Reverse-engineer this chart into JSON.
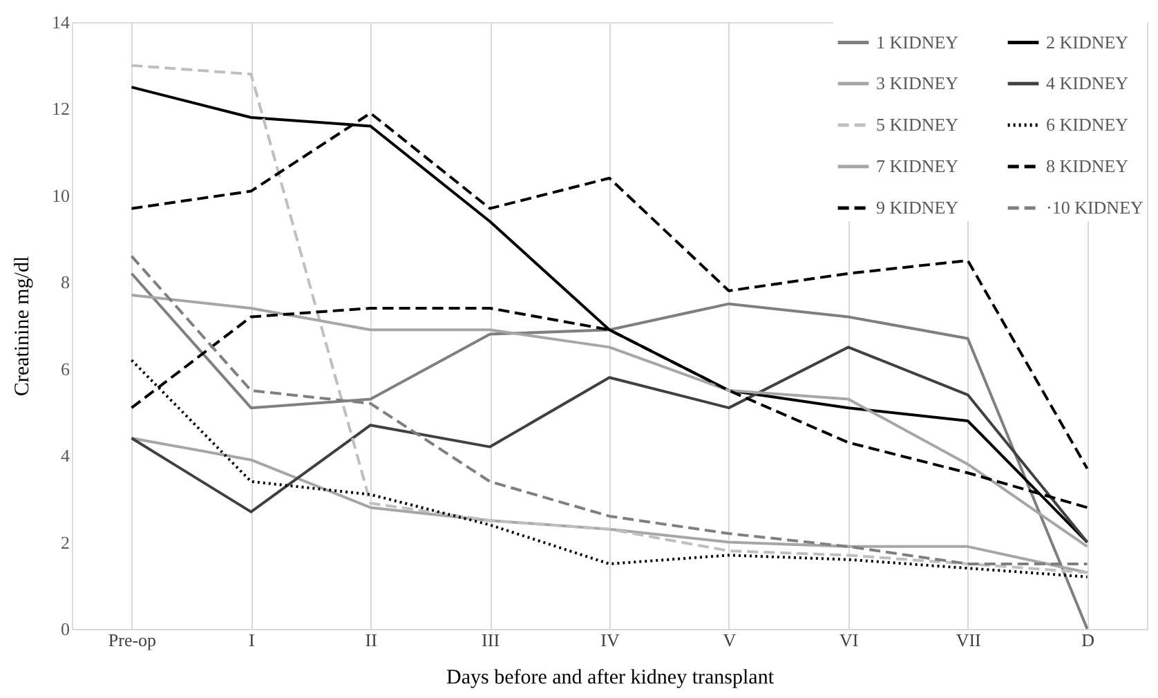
{
  "chart_data": {
    "type": "line",
    "xlabel": "Days before and after kidney transplant",
    "ylabel": "Creatinine mg/dl",
    "categories": [
      "Pre-op",
      "I",
      "II",
      "III",
      "IV",
      "V",
      "VI",
      "VII",
      "D"
    ],
    "ylim": [
      0,
      14
    ],
    "yticks": [
      0,
      2,
      4,
      6,
      8,
      10,
      12,
      14
    ],
    "grid": "x",
    "legend": "top right",
    "series": [
      {
        "name": "1 KIDNEY",
        "color": "#7f7f7f",
        "line_style": "solid",
        "values": [
          8.2,
          5.1,
          5.3,
          6.8,
          6.9,
          7.5,
          7.2,
          6.7,
          0
        ]
      },
      {
        "name": "2 KIDNEY",
        "color": "#000000",
        "line_style": "solid",
        "values": [
          12.5,
          11.8,
          11.6,
          9.4,
          6.9,
          5.5,
          5.1,
          4.8,
          2.0
        ]
      },
      {
        "name": "3 KIDNEY",
        "color": "#a6a6a6",
        "line_style": "solid",
        "values": [
          4.4,
          3.9,
          2.8,
          2.5,
          2.3,
          2.0,
          1.9,
          1.9,
          1.3
        ]
      },
      {
        "name": "4 KIDNEY",
        "color": "#404040",
        "line_style": "solid",
        "values": [
          4.4,
          2.7,
          4.7,
          4.2,
          5.8,
          5.1,
          6.5,
          5.4,
          2.0
        ]
      },
      {
        "name": "5 KIDNEY",
        "color": "#bfbfbf",
        "line_style": "dashed",
        "values": [
          13.0,
          12.8,
          2.9,
          2.5,
          2.3,
          1.8,
          1.7,
          1.5,
          1.3
        ]
      },
      {
        "name": "6 KIDNEY",
        "color": "#000000",
        "line_style": "dotted",
        "values": [
          6.2,
          3.4,
          3.1,
          2.4,
          1.5,
          1.7,
          1.6,
          1.4,
          1.2
        ]
      },
      {
        "name": "7 KIDNEY",
        "color": "#a6a6a6",
        "line_style": "solid",
        "values": [
          7.7,
          7.4,
          6.9,
          6.9,
          6.5,
          5.5,
          5.3,
          3.8,
          1.9
        ]
      },
      {
        "name": "8 KIDNEY",
        "color": "#000000",
        "line_style": "dashed",
        "values": [
          9.7,
          10.1,
          11.9,
          9.7,
          10.4,
          7.8,
          8.2,
          8.5,
          3.7
        ]
      },
      {
        "name": "9 KIDNEY",
        "color": "#000000",
        "line_style": "dashed",
        "values": [
          5.1,
          7.2,
          7.4,
          7.4,
          6.9,
          5.5,
          4.3,
          3.6,
          2.8
        ]
      },
      {
        "name": "·10 KIDNEY",
        "color": "#7f7f7f",
        "line_style": "dashed",
        "values": [
          8.6,
          5.5,
          5.2,
          3.4,
          2.6,
          2.2,
          1.9,
          1.5,
          1.5
        ]
      }
    ]
  }
}
